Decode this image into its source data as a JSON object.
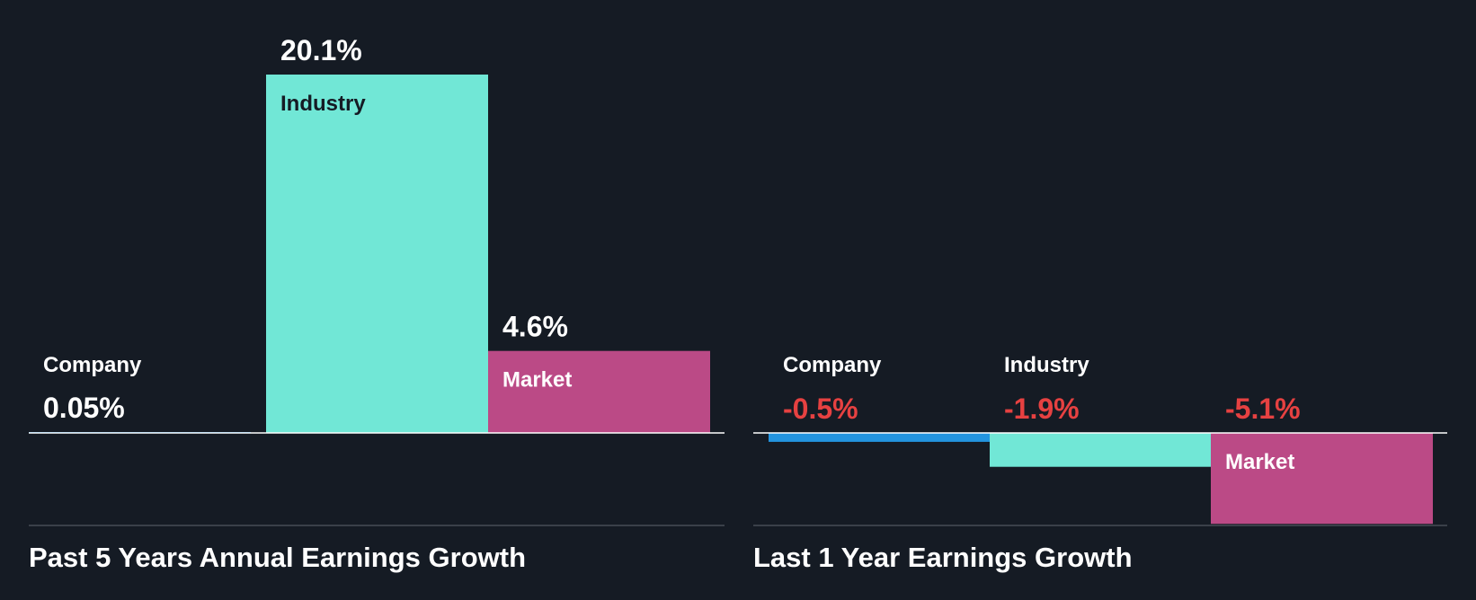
{
  "chart_data": [
    {
      "type": "bar",
      "title": "Past 5 Years Annual Earnings Growth",
      "categories": [
        "Company",
        "Industry",
        "Market"
      ],
      "values": [
        0.05,
        20.1,
        4.6
      ],
      "value_labels": [
        "0.05%",
        "20.1%",
        "4.6%"
      ],
      "unit": "%",
      "ylim": [
        -5.1,
        20.1
      ],
      "grid": false,
      "legend": "none"
    },
    {
      "type": "bar",
      "title": "Last 1 Year Earnings Growth",
      "categories": [
        "Company",
        "Industry",
        "Market"
      ],
      "values": [
        -0.5,
        -1.9,
        -5.1
      ],
      "value_labels": [
        "-0.5%",
        "-1.9%",
        "-5.1%"
      ],
      "unit": "%",
      "ylim": [
        -5.1,
        20.1
      ],
      "grid": false,
      "legend": "none"
    }
  ],
  "colors": {
    "background": "#151b24",
    "company": "#2394df",
    "industry": "#71e7d6",
    "market": "#bb4a86",
    "positive_label": "#ffffff",
    "negative_label": "#e64141",
    "on_industry_bar": "#151b24",
    "axis": "#ffffff",
    "divider": "#3a4049"
  }
}
